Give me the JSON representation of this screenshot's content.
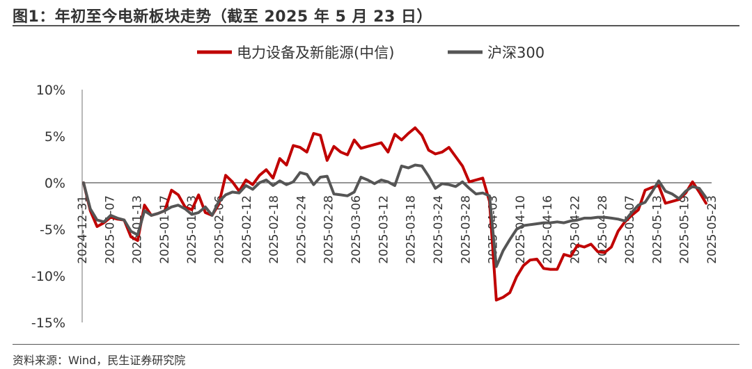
{
  "header": {
    "title": "图1：年初至今电新板块走势（截至 2025 年 5 月 23 日）"
  },
  "footer": {
    "source": "资料来源：Wind，民生证券研究院"
  },
  "chart_data": {
    "type": "line",
    "title": "",
    "xlabel": "",
    "ylabel": "",
    "ylim": [
      -15,
      10
    ],
    "yticks": [
      "10%",
      "5%",
      "0%",
      "-5%",
      "-10%",
      "-15%"
    ],
    "ytick_values": [
      10,
      5,
      0,
      -5,
      -10,
      -15
    ],
    "x_labels": [
      "2024-12-31",
      "2025-01-07",
      "2025-01-13",
      "2025-01-17",
      "2025-01-23",
      "2025-02-06",
      "2025-02-12",
      "2025-02-18",
      "2025-02-24",
      "2025-02-28",
      "2025-03-06",
      "2025-03-12",
      "2025-03-18",
      "2025-03-24",
      "2025-03-28",
      "2025-04-03",
      "2025-04-10",
      "2025-04-16",
      "2025-04-22",
      "2025-04-28",
      "2025-05-07",
      "2025-05-13",
      "2025-05-19",
      "2025-05-23"
    ],
    "legend_position": "top-center",
    "grid": false,
    "series": [
      {
        "name": "电力设备及新能源(中信)",
        "color": "#c00000",
        "values": [
          0,
          -3.0,
          -4.7,
          -4.3,
          -3.7,
          -3.9,
          -4.0,
          -5.8,
          -6.2,
          -2.4,
          -3.5,
          -3.3,
          -3.0,
          -0.8,
          -1.3,
          -2.6,
          -2.9,
          -1.3,
          -3.2,
          -3.5,
          -2.3,
          0.8,
          0.1,
          -0.9,
          0.3,
          -0.2,
          0.8,
          1.4,
          0.5,
          2.6,
          1.9,
          4.0,
          3.8,
          3.3,
          5.3,
          5.1,
          2.4,
          3.9,
          3.3,
          3.0,
          4.6,
          3.7,
          3.9,
          4.1,
          4.3,
          3.3,
          5.2,
          4.6,
          5.3,
          5.9,
          5.1,
          3.5,
          3.1,
          3.3,
          3.8,
          2.8,
          1.8,
          0.1,
          0.3,
          0.5,
          -2.0,
          -12.6,
          -12.3,
          -11.8,
          -10.1,
          -8.9,
          -8.3,
          -8.2,
          -9.2,
          -9.3,
          -9.3,
          -7.7,
          -7.9,
          -6.7,
          -6.9,
          -6.6,
          -7.4,
          -7.5,
          -6.9,
          -5.2,
          -4.2,
          -3.5,
          -2.9,
          -0.8,
          -0.5,
          -0.3,
          -2.2,
          -2.0,
          -1.8,
          -1.1,
          0.1,
          -1.0,
          -2.2
        ]
      },
      {
        "name": "沪深300",
        "color": "#555555",
        "values": [
          0,
          -2.8,
          -4.0,
          -4.2,
          -3.5,
          -3.8,
          -4.0,
          -5.2,
          -5.6,
          -3.0,
          -3.5,
          -3.3,
          -3.0,
          -2.6,
          -2.4,
          -2.8,
          -3.4,
          -3.2,
          -2.6,
          -3.5,
          -2.0,
          -1.3,
          -1.0,
          -1.1,
          -0.3,
          -0.7,
          0.0,
          0.3,
          -0.3,
          0.2,
          -0.2,
          0.1,
          1.1,
          0.9,
          -0.2,
          0.6,
          0.7,
          -1.2,
          -1.3,
          -1.4,
          -1.0,
          0.6,
          0.3,
          -0.1,
          0.3,
          0.1,
          -0.3,
          1.8,
          1.6,
          1.9,
          1.8,
          0.7,
          -0.6,
          -0.1,
          -0.2,
          -0.4,
          0.1,
          -0.6,
          -1.2,
          -1.1,
          -1.4,
          -9.0,
          -7.3,
          -6.1,
          -5.0,
          -4.6,
          -4.5,
          -4.4,
          -4.3,
          -4.3,
          -4.2,
          -4.3,
          -4.1,
          -4.0,
          -3.8,
          -3.8,
          -3.7,
          -3.7,
          -3.8,
          -3.9,
          -4.1,
          -3.2,
          -2.4,
          -2.1,
          -1.0,
          0.2,
          -0.9,
          -1.2,
          -1.7,
          -0.9,
          -0.4,
          -0.6,
          -1.6
        ]
      }
    ]
  }
}
